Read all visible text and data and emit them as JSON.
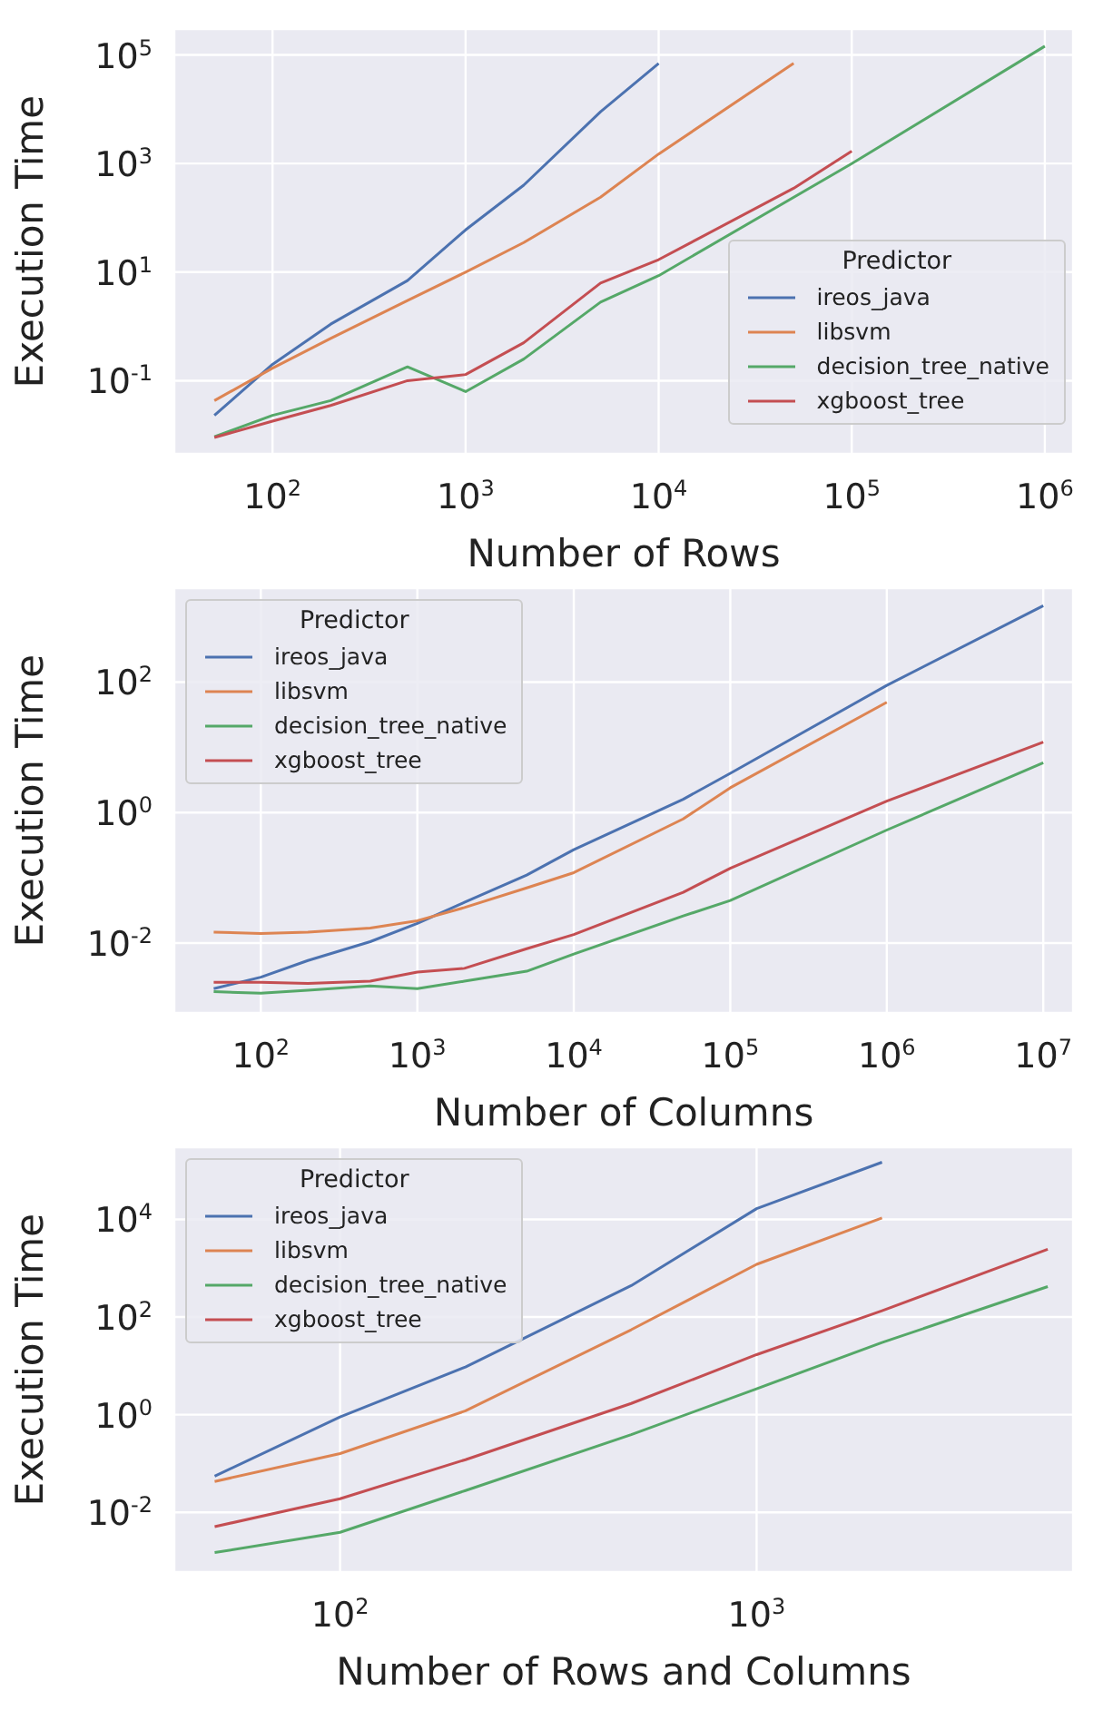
{
  "chart_data": [
    {
      "type": "line",
      "xlabel": "Number of Rows",
      "ylabel": "Execution Time",
      "legend_title": "Predictor",
      "legend": "bottom right",
      "log": "xy",
      "grid": true,
      "marker": "none",
      "xlim": [
        31,
        1400000
      ],
      "ylim": [
        0.0045,
        300000
      ],
      "xticks": [
        {
          "value": 100,
          "label": "10$^{2}$"
        },
        {
          "value": 1000,
          "label": "10$^{3}$"
        },
        {
          "value": 10000,
          "label": "10$^{4}$"
        },
        {
          "value": 100000,
          "label": "10$^{5}$"
        },
        {
          "value": 1000000,
          "label": "10$^{6}$"
        }
      ],
      "yticks": [
        {
          "value": 0.1,
          "label": "10$^{-1}$"
        },
        {
          "value": 10,
          "label": "10$^{1}$"
        },
        {
          "value": 1000,
          "label": "10$^{3}$"
        },
        {
          "value": 100000,
          "label": "10$^{5}$"
        }
      ],
      "series": [
        {
          "name": "ireos_java",
          "color": "#4c72b0",
          "x": [
            50,
            100,
            200,
            500,
            1000,
            2000,
            5000,
            10000
          ],
          "values": [
            0.023,
            0.2,
            1.1,
            7,
            60,
            400,
            9000,
            70000
          ]
        },
        {
          "name": "libsvm",
          "color": "#dd8452",
          "x": [
            50,
            100,
            200,
            500,
            1000,
            2000,
            5000,
            10000,
            50000
          ],
          "values": [
            0.043,
            0.17,
            0.6,
            3,
            10,
            35,
            240,
            1500,
            70000
          ]
        },
        {
          "name": "decision_tree_native",
          "color": "#55a868",
          "x": [
            50,
            100,
            200,
            500,
            1000,
            2000,
            5000,
            10000,
            100000,
            1000000
          ],
          "values": [
            0.0093,
            0.023,
            0.043,
            0.18,
            0.063,
            0.25,
            2.8,
            8.6,
            1000,
            145000
          ]
        },
        {
          "name": "xgboost_tree",
          "color": "#c44e52",
          "x": [
            50,
            100,
            200,
            500,
            1000,
            2000,
            5000,
            10000,
            50000,
            100000
          ],
          "values": [
            0.009,
            0.018,
            0.035,
            0.1,
            0.13,
            0.5,
            6.3,
            17,
            350,
            1700
          ]
        }
      ]
    },
    {
      "type": "line",
      "xlabel": "Number of Columns",
      "ylabel": "Execution Time",
      "legend_title": "Predictor",
      "legend": "top left",
      "log": "xy",
      "grid": true,
      "marker": "none",
      "xlim": [
        28,
        15500000
      ],
      "ylim": [
        0.00085,
        2750
      ],
      "xticks": [
        {
          "value": 100,
          "label": "10$^{2}$"
        },
        {
          "value": 1000,
          "label": "10$^{3}$"
        },
        {
          "value": 10000,
          "label": "10$^{4}$"
        },
        {
          "value": 100000,
          "label": "10$^{5}$"
        },
        {
          "value": 1000000,
          "label": "10$^{6}$"
        },
        {
          "value": 10000000,
          "label": "10$^{7}$"
        }
      ],
      "yticks": [
        {
          "value": 0.01,
          "label": "10$^{-2}$"
        },
        {
          "value": 1,
          "label": "10$^{0}$"
        },
        {
          "value": 100,
          "label": "10$^{2}$"
        }
      ],
      "series": [
        {
          "name": "ireos_java",
          "color": "#4c72b0",
          "x": [
            50,
            100,
            200,
            500,
            1000,
            2000,
            5000,
            10000,
            50000,
            100000,
            1000000,
            10000000
          ],
          "values": [
            0.002,
            0.003,
            0.0054,
            0.0105,
            0.02,
            0.042,
            0.11,
            0.27,
            1.6,
            4,
            89,
            1480
          ]
        },
        {
          "name": "libsvm",
          "color": "#dd8452",
          "x": [
            50,
            100,
            200,
            500,
            1000,
            2000,
            5000,
            10000,
            50000,
            100000,
            1000000
          ],
          "values": [
            0.0147,
            0.014,
            0.0147,
            0.017,
            0.022,
            0.035,
            0.07,
            0.12,
            0.8,
            2.4,
            49
          ]
        },
        {
          "name": "decision_tree_native",
          "color": "#55a868",
          "x": [
            50,
            100,
            200,
            500,
            1000,
            2000,
            5000,
            10000,
            50000,
            100000,
            1000000,
            10000000
          ],
          "values": [
            0.0018,
            0.0017,
            0.0019,
            0.0022,
            0.002,
            0.0026,
            0.0037,
            0.0068,
            0.026,
            0.045,
            0.54,
            5.8
          ]
        },
        {
          "name": "xgboost_tree",
          "color": "#c44e52",
          "x": [
            50,
            100,
            200,
            500,
            1000,
            2000,
            5000,
            10000,
            50000,
            100000,
            1000000,
            10000000
          ],
          "values": [
            0.0025,
            0.0025,
            0.0024,
            0.0026,
            0.0036,
            0.0041,
            0.0082,
            0.0135,
            0.06,
            0.14,
            1.5,
            12
          ]
        }
      ]
    },
    {
      "type": "line",
      "xlabel": "Number of Rows and Columns",
      "ylabel": "Execution Time",
      "legend_title": "Predictor",
      "legend": "top left",
      "log": "xy",
      "grid": true,
      "marker": "none",
      "xlim": [
        40,
        5750
      ],
      "ylim": [
        0.0006,
        300000
      ],
      "xticks": [
        {
          "value": 100,
          "label": "10$^{2}$"
        },
        {
          "value": 1000,
          "label": "10$^{3}$"
        }
      ],
      "yticks": [
        {
          "value": 0.01,
          "label": "10$^{-2}$"
        },
        {
          "value": 1,
          "label": "10$^{0}$"
        },
        {
          "value": 100,
          "label": "10$^{2}$"
        },
        {
          "value": 10000,
          "label": "10$^{4}$"
        }
      ],
      "series": [
        {
          "name": "ireos_java",
          "color": "#4c72b0",
          "x": [
            50,
            100,
            200,
            500,
            1000,
            2000
          ],
          "values": [
            0.055,
            0.9,
            9.5,
            440,
            16600,
            148000
          ]
        },
        {
          "name": "libsvm",
          "color": "#dd8452",
          "x": [
            50,
            100,
            200,
            500,
            1000,
            2000
          ],
          "values": [
            0.043,
            0.16,
            1.2,
            55,
            1200,
            10700
          ]
        },
        {
          "name": "decision_tree_native",
          "color": "#55a868",
          "x": [
            50,
            100,
            200,
            500,
            1000,
            2000,
            5000
          ],
          "values": [
            0.0015,
            0.0039,
            0.028,
            0.39,
            3.4,
            30,
            420
          ]
        },
        {
          "name": "xgboost_tree",
          "color": "#c44e52",
          "x": [
            50,
            100,
            200,
            500,
            1000,
            2000,
            5000
          ],
          "values": [
            0.0051,
            0.019,
            0.12,
            1.7,
            17,
            135,
            2450
          ]
        }
      ]
    }
  ]
}
